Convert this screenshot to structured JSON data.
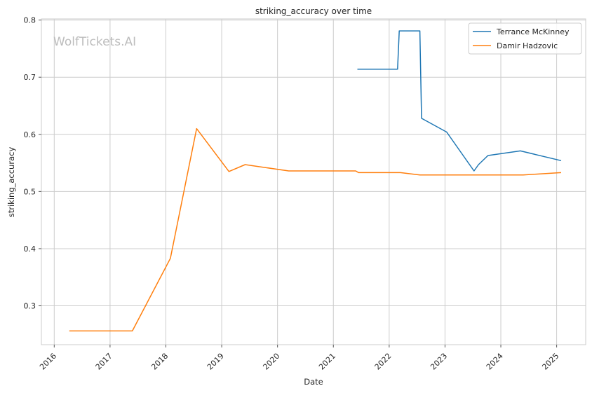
{
  "chart_data": {
    "type": "line",
    "title": "striking_accuracy over time",
    "xlabel": "Date",
    "ylabel": "striking_accuracy",
    "watermark": "WolfTickets.AI",
    "xlim": [
      2015.77,
      2025.52
    ],
    "ylim": [
      0.232,
      0.802
    ],
    "x_ticks": [
      2016,
      2017,
      2018,
      2019,
      2020,
      2021,
      2022,
      2023,
      2024,
      2025
    ],
    "x_tick_labels": [
      "2016",
      "2017",
      "2018",
      "2019",
      "2020",
      "2021",
      "2022",
      "2023",
      "2024",
      "2025"
    ],
    "y_ticks": [
      0.3,
      0.4,
      0.5,
      0.6,
      0.7,
      0.8
    ],
    "y_tick_labels": [
      "0.3",
      "0.4",
      "0.5",
      "0.6",
      "0.7",
      "0.8"
    ],
    "grid": true,
    "legend_position": "top-right",
    "series": [
      {
        "name": "Terrance McKinney",
        "color": "#1f77b4",
        "x": [
          2021.43,
          2022.15,
          2022.18,
          2022.55,
          2022.58,
          2023.03,
          2023.52,
          2023.6,
          2023.77,
          2024.35,
          2025.08
        ],
        "y": [
          0.714,
          0.714,
          0.781,
          0.781,
          0.628,
          0.604,
          0.536,
          0.547,
          0.563,
          0.571,
          0.554
        ]
      },
      {
        "name": "Damir Hadzovic",
        "color": "#ff7f0e",
        "x": [
          2016.27,
          2016.75,
          2017.4,
          2018.08,
          2018.55,
          2019.13,
          2019.42,
          2020.2,
          2021.4,
          2021.45,
          2022.2,
          2022.55,
          2023.4,
          2024.4,
          2025.08
        ],
        "y": [
          0.256,
          0.256,
          0.256,
          0.383,
          0.61,
          0.535,
          0.547,
          0.536,
          0.536,
          0.533,
          0.533,
          0.529,
          0.529,
          0.529,
          0.533
        ]
      }
    ]
  }
}
